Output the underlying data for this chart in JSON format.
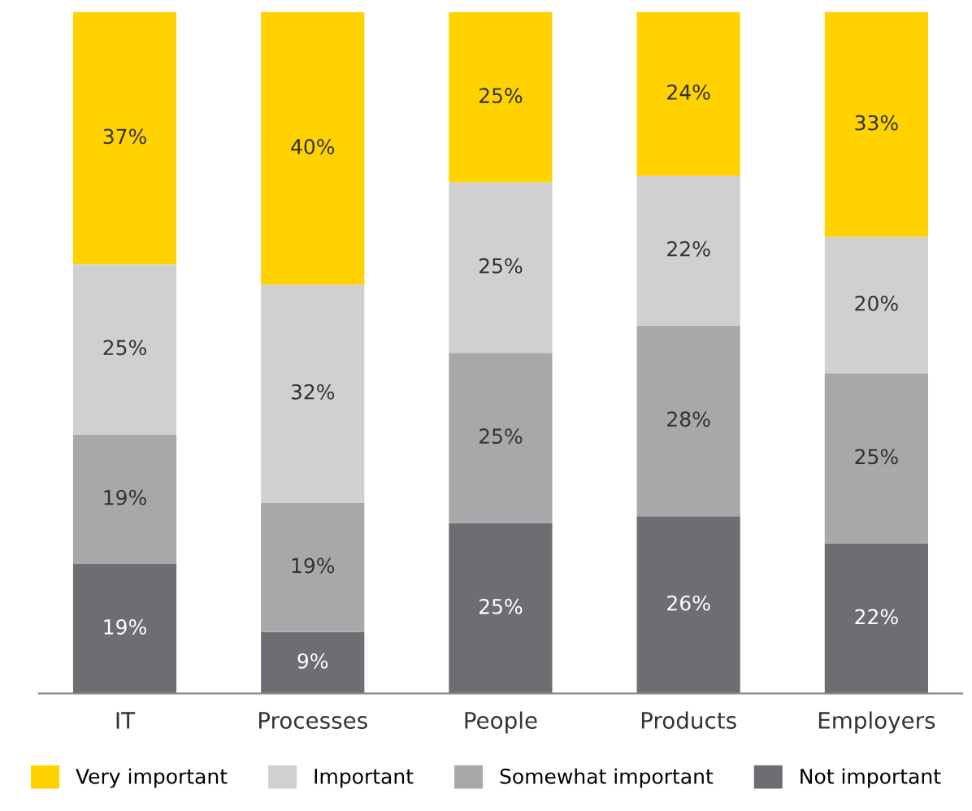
{
  "chart_data": {
    "type": "bar",
    "stacked": true,
    "categories": [
      "IT",
      "Processes",
      "People",
      "Products",
      "Employers"
    ],
    "series": [
      {
        "name": "Not important",
        "color": "#6d6e71",
        "values": [
          19,
          9,
          25,
          26,
          22
        ],
        "value_labels": [
          "19%",
          "9%",
          "25%",
          "26%",
          "22%"
        ]
      },
      {
        "name": "Somewhat important",
        "color": "#a7a8aa",
        "values": [
          19,
          19,
          25,
          28,
          25
        ],
        "value_labels": [
          "19%",
          "19%",
          "25%",
          "28%",
          "25%"
        ]
      },
      {
        "name": "Important",
        "color": "#d0d0d2",
        "values": [
          25,
          32,
          25,
          22,
          20
        ],
        "value_labels": [
          "25%",
          "32%",
          "25%",
          "22%",
          "20%"
        ]
      },
      {
        "name": "Very important",
        "color": "#ffd200",
        "values": [
          37,
          40,
          25,
          24,
          33
        ],
        "value_labels": [
          "37%",
          "40%",
          "25%",
          "24%",
          "33%"
        ]
      }
    ],
    "legend": "bottom",
    "grid": false
  }
}
